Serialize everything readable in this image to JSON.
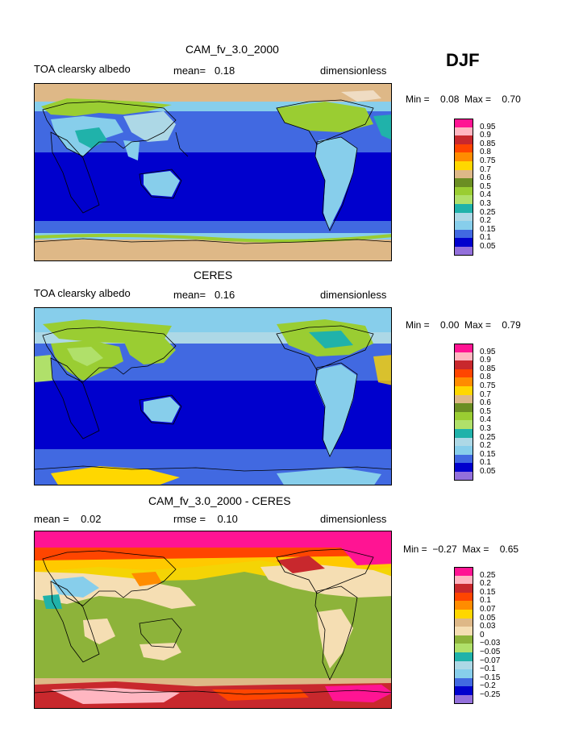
{
  "season": "DJF",
  "panels": [
    {
      "title": "CAM_fv_3.0_2000",
      "left_label": "TOA clearsky albedo",
      "center_label": "mean=   0.18",
      "right_label": "dimensionless",
      "minmax": "Min =    0.08  Max =    0.70",
      "colorbar": {
        "labels": [
          "0.95",
          "0.9",
          "0.85",
          "0.8",
          "0.75",
          "0.7",
          "0.6",
          "0.5",
          "0.4",
          "0.3",
          "0.25",
          "0.2",
          "0.15",
          "0.1",
          "0.05"
        ],
        "colors": [
          "#ff1493",
          "#ffb6c1",
          "#c8282d",
          "#ff4500",
          "#ff8c00",
          "#ffd700",
          "#deb887",
          "#6b8e23",
          "#9acd32",
          "#b0e06a",
          "#20b2aa",
          "#add8e6",
          "#87ceeb",
          "#4169e1",
          "#0000cd",
          "#9370db"
        ]
      }
    },
    {
      "title": "CERES",
      "left_label": "TOA clearsky albedo",
      "center_label": "mean=   0.16",
      "right_label": "dimensionless",
      "minmax": "Min =    0.00  Max =    0.79",
      "colorbar": {
        "labels": [
          "0.95",
          "0.9",
          "0.85",
          "0.8",
          "0.75",
          "0.7",
          "0.6",
          "0.5",
          "0.4",
          "0.3",
          "0.25",
          "0.2",
          "0.15",
          "0.1",
          "0.05"
        ],
        "colors": [
          "#ff1493",
          "#ffb6c1",
          "#c8282d",
          "#ff4500",
          "#ff8c00",
          "#ffd700",
          "#deb887",
          "#6b8e23",
          "#9acd32",
          "#b0e06a",
          "#20b2aa",
          "#add8e6",
          "#87ceeb",
          "#4169e1",
          "#0000cd",
          "#9370db"
        ]
      }
    },
    {
      "title": "CAM_fv_3.0_2000 - CERES",
      "left_label": "mean =    0.02",
      "center_label": "rmse =    0.10",
      "right_label": "dimensionless",
      "minmax": "Min =  −0.27  Max =    0.65",
      "colorbar": {
        "labels": [
          "0.25",
          "0.2",
          "0.15",
          "0.1",
          "0.07",
          "0.05",
          "0.03",
          "0",
          "−0.03",
          "−0.05",
          "−0.07",
          "−0.1",
          "−0.15",
          "−0.2",
          "−0.25"
        ],
        "colors": [
          "#ff1493",
          "#ffb6c1",
          "#c8282d",
          "#ff4500",
          "#ff8c00",
          "#ffd700",
          "#deb887",
          "#f5deb3",
          "#8db33a",
          "#b0e06a",
          "#20b2aa",
          "#add8e6",
          "#87ceeb",
          "#4169e1",
          "#0000cd",
          "#9370db"
        ]
      }
    }
  ]
}
